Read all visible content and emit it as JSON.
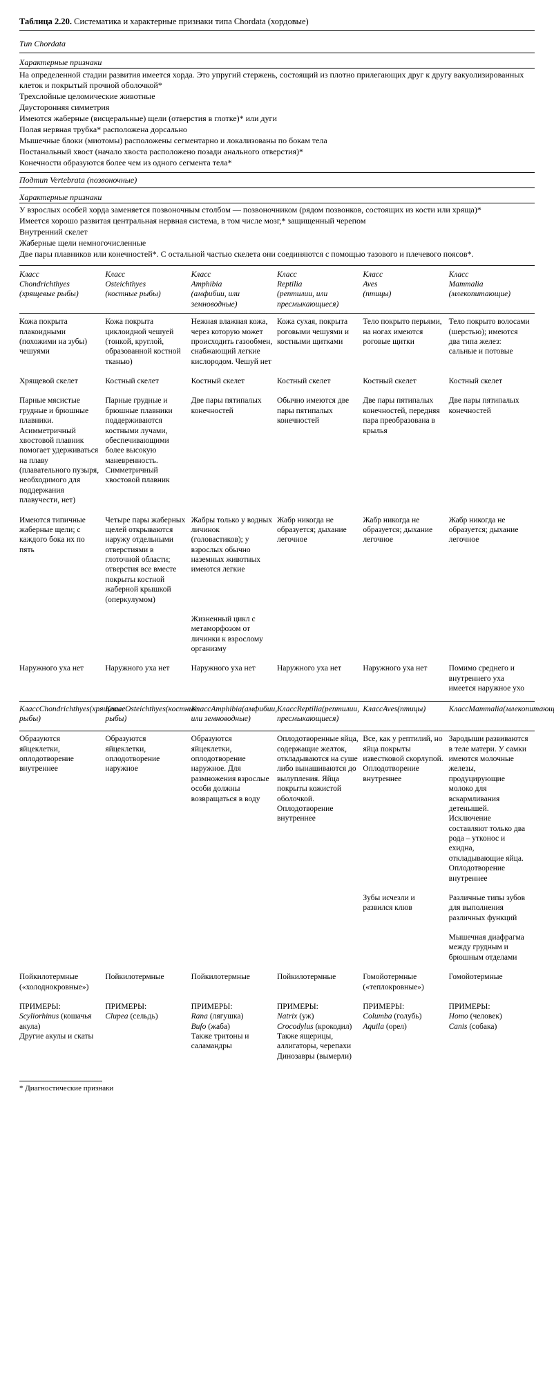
{
  "title_bold": "Таблица 2.20.",
  "title_rest": "Систематика и характерные признаки типа Chordata (хордовые)",
  "phylum_head": "Тип Chordata",
  "traits_head": "Характерные признаки",
  "phylum_traits": [
    "На определенной стадии развития имеется хорда. Это упругий стержень, состоящий из плотно прилегающих друг к другу вакуолизированных клеток и покрытый прочной оболочкой*",
    "Трехслойные целомические животные",
    "Двусторонняя симметрия",
    "Имеются жаберные (висцеральные) щели (отверстия в глотке)* или дуги",
    "Полая нервная трубка* расположена дорсально",
    "Мышечные блоки (миотомы) расположены сегментарно и локализованы по бокам тела",
    "Постанальный хвост (начало хвоста расположено позади анального отверстия)*",
    "Конечности образуются более чем из одного сегмента тела*"
  ],
  "subphylum_head": "Подтип Vertebrata (позвоночные)",
  "sub_traits": [
    "У взрослых особей хорда заменяется позвоночным столбом — позвоночником (рядом позвонков, состоящих из кости или хряща)*",
    "Имеется хорошо развитая центральная нервная система, в том числе мозг,* защищенный черепом",
    "Внутренний скелет",
    "Жаберные щели немногочисленные",
    "Две пары плавников или конечностей*. С остальной частью скелета они соединяются с помощью тазового и плечевого поясов*."
  ],
  "classes": [
    {
      "cls": "Класс",
      "lat": "Chondrichthyes",
      "ru": "(хрящевые рыбы)"
    },
    {
      "cls": "Класс",
      "lat": "Osteichthyes",
      "ru": "(костные рыбы)"
    },
    {
      "cls": "Класс",
      "lat": "Amphibia",
      "ru": "(амфибии, или земноводные)"
    },
    {
      "cls": "Класс",
      "lat": "Reptilia",
      "ru": "(рептилии, или пресмыкающиеся)"
    },
    {
      "cls": "Класс",
      "lat": "Aves",
      "ru": "(птицы)"
    },
    {
      "cls": "Класс",
      "lat": "Mammalia",
      "ru": "(млекопитающие)"
    }
  ],
  "rows_a": [
    [
      "Кожа покрыта плакоидными (похожими на зубы) чешуями",
      "Кожа покрыта циклоидной чешуей (тонкой, круглой, образованной костной тканью)",
      "Нежная влажная кожа, через которую может происходить газообмен, снабжающий легкие кислородом. Чешуй нет",
      "Кожа сухая, покрыта роговыми чешуями и костными щитками",
      "Тело покрыто перьями, на ногах имеются роговые щитки",
      "Тело покрыто волосами (шерстью); имеются два типа желез: сальные и потовые"
    ],
    [
      "Хрящевой скелет",
      "Костный скелет",
      "Костный скелет",
      "Костный скелет",
      "Костный скелет",
      "Костный скелет"
    ],
    [
      "Парные мясистые грудные и брюшные плавники. Асимметричный хвостовой плавник помогает удерживаться на плаву (плавательного пузыря, необходимого для поддержания плавучести, нет)",
      "Парные грудные и брюшные плавники поддерживаются костными лучами, обеспечивающими более высокую маневренность. Симметричный хвостовой плавник",
      "Две пары пятипалых конечностей",
      "Обычно имеются две пары пятипалых конечностей",
      "Две пары пятипалых конечностей, передняя пара преобразована в крылья",
      "Две пары пятипалых конечностей"
    ],
    [
      "Имеются типичные жаберные щели; с каждого бока их по пять",
      "Четыре пары жаберных щелей открываются наружу отдельными отверстиями в глоточной области; отверстия все вместе покрыты костной жаберной крышкой (оперкулумом)",
      "Жабры только у водных личинок (головастиков); у взрослых обычно наземных животных имеются легкие",
      "Жабр никогда не образуется; дыхание легочное",
      "Жабр никогда не образуется; дыхание легочное",
      "Жабр никогда не образуется; дыхание легочное"
    ],
    [
      "",
      "",
      "Жизненный цикл с метаморфозом от личинки к взрослому организму",
      "",
      "",
      ""
    ],
    [
      "Наружного уха нет",
      "Наружного уха нет",
      "Наружного уха нет",
      "Наружного уха нет",
      "Наружного уха нет",
      "Помимо среднего и внутреннего уха имеется наружное ухо"
    ]
  ],
  "classes2": [
    {
      "cls": "Класс",
      "lat": "Chondrichthyes",
      "ru": "(хрящевые рыбы)"
    },
    {
      "cls": "Класс",
      "lat": "Osteichthyes",
      "ru": "(костные рыбы)"
    },
    {
      "cls": "Класс",
      "lat": "Amphibia",
      "ru": "(амфибии, или земноводные)"
    },
    {
      "cls": "Класс",
      "lat": "Reptilia",
      "ru": "(рептилии, пресмыкающиеся)"
    },
    {
      "cls": "Класс",
      "lat": "Aves",
      "ru": "(птицы)"
    },
    {
      "cls": "Класс",
      "lat": "Mammalia",
      "ru": "(млекопитающие)"
    }
  ],
  "rows_b": [
    [
      "Образуются яйцеклетки, оплодотворение внутреннее",
      "Образуются яйцеклетки, оплодотворение наружное",
      "Образуются яйцеклетки, оплодотворение наружное. Для размножения взрослые особи должны возвращаться в воду",
      "Оплодотворенные яйца, содержащие желток, откладываются на суше либо вынашиваются до вылупления. Яйца покрыты кожистой оболочкой. Оплодотворение внутреннее",
      "Все, как у рептилий, но яйца покрыты известковой скорлупой. Оплодотворение внутреннее",
      "Зародыши развиваются в теле матери. У самки имеются молочные железы, продуцирующие молоко для вскармливания детенышей. Исключение составляют только два рода – утконос и ехидна, откладывающие яйца. Оплодотворение внутреннее"
    ],
    [
      "",
      "",
      "",
      "",
      "Зубы исчезли и развился клюв",
      "Различные типы зубов для выполнения различных функций"
    ],
    [
      "",
      "",
      "",
      "",
      "",
      "Мышечная диафрагма между грудным и брюшным отделами"
    ],
    [
      "Пойкилотермные («холоднокровные»)",
      "Пойкилотермные",
      "Пойкилотермные",
      "Пойкилотермные",
      "Гомойотермные («теплокровные»)",
      "Гомойотермные"
    ]
  ],
  "examples_label": "ПРИМЕРЫ:",
  "examples": [
    "<i>Scyliorhinus</i> (кошачья акула)<br>Другие акулы и скаты",
    "<i>Clupea</i> (сельдь)",
    "<i>Rana</i> (лягушка)<br><i>Bufo</i> (жаба)<br>Также тритоны и саламандры",
    "<i>Natrix</i> (уж)<br><i>Crocodylus</i> (крокодил)<br>Также ящерицы, аллигаторы, черепахи<br>Динозавры (вымерли)",
    "<i>Columba</i> (голубь)<br><i>Aquila</i> (орел)",
    "<i>Homo</i> (человек)<br><i>Canis</i> (собака)"
  ],
  "footnote": "*  Диагностические признаки"
}
